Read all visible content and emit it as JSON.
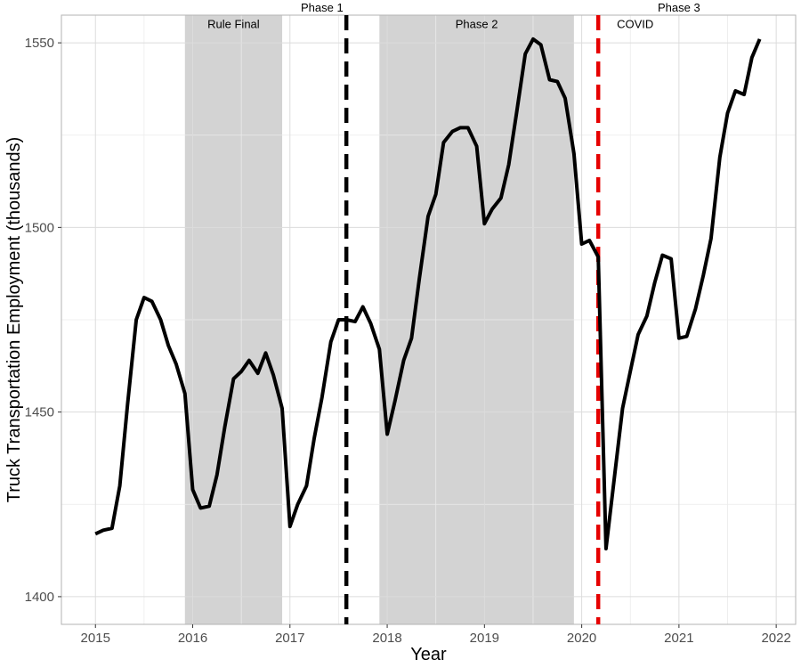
{
  "chart_data": {
    "type": "line",
    "title": "",
    "xlabel": "Year",
    "ylabel": "Truck Transportation Employment (thousands)",
    "xlim": [
      2014.65,
      2022.2
    ],
    "ylim": [
      1392.5,
      1557.5
    ],
    "x_ticks": [
      2015,
      2016,
      2017,
      2018,
      2019,
      2020,
      2021,
      2022
    ],
    "y_ticks": [
      1400,
      1450,
      1500,
      1550
    ],
    "grid": true,
    "legend": "none",
    "series": [
      {
        "color": "#000000",
        "points": [
          [
            2015.0,
            1417
          ],
          [
            2015.08,
            1418
          ],
          [
            2015.17,
            1418.5
          ],
          [
            2015.25,
            1430
          ],
          [
            2015.33,
            1452
          ],
          [
            2015.42,
            1475
          ],
          [
            2015.5,
            1481
          ],
          [
            2015.58,
            1480
          ],
          [
            2015.67,
            1475
          ],
          [
            2015.75,
            1468
          ],
          [
            2015.83,
            1463
          ],
          [
            2015.92,
            1455
          ],
          [
            2016.0,
            1429
          ],
          [
            2016.08,
            1424
          ],
          [
            2016.17,
            1424.5
          ],
          [
            2016.25,
            1433
          ],
          [
            2016.33,
            1446
          ],
          [
            2016.42,
            1459
          ],
          [
            2016.5,
            1461
          ],
          [
            2016.58,
            1464
          ],
          [
            2016.67,
            1460.5
          ],
          [
            2016.75,
            1466
          ],
          [
            2016.83,
            1460
          ],
          [
            2016.92,
            1451
          ],
          [
            2017.0,
            1419
          ],
          [
            2017.08,
            1425
          ],
          [
            2017.17,
            1430
          ],
          [
            2017.25,
            1443
          ],
          [
            2017.33,
            1454
          ],
          [
            2017.42,
            1469
          ],
          [
            2017.5,
            1475
          ],
          [
            2017.58,
            1475
          ],
          [
            2017.67,
            1474.5
          ],
          [
            2017.75,
            1478.5
          ],
          [
            2017.83,
            1474
          ],
          [
            2017.92,
            1467
          ],
          [
            2018.0,
            1444
          ],
          [
            2018.08,
            1453
          ],
          [
            2018.17,
            1464
          ],
          [
            2018.25,
            1470
          ],
          [
            2018.33,
            1486
          ],
          [
            2018.42,
            1503
          ],
          [
            2018.5,
            1509
          ],
          [
            2018.58,
            1523
          ],
          [
            2018.67,
            1526
          ],
          [
            2018.75,
            1527
          ],
          [
            2018.83,
            1527
          ],
          [
            2018.92,
            1522
          ],
          [
            2019.0,
            1501
          ],
          [
            2019.08,
            1505
          ],
          [
            2019.17,
            1508
          ],
          [
            2019.25,
            1517
          ],
          [
            2019.33,
            1531
          ],
          [
            2019.42,
            1547
          ],
          [
            2019.5,
            1551
          ],
          [
            2019.58,
            1549.5
          ],
          [
            2019.67,
            1540
          ],
          [
            2019.75,
            1539.5
          ],
          [
            2019.83,
            1535
          ],
          [
            2019.92,
            1520
          ],
          [
            2020.0,
            1495.5
          ],
          [
            2020.08,
            1496.5
          ],
          [
            2020.17,
            1492
          ],
          [
            2020.25,
            1413
          ],
          [
            2020.33,
            1431
          ],
          [
            2020.42,
            1451
          ],
          [
            2020.5,
            1461
          ],
          [
            2020.58,
            1471
          ],
          [
            2020.67,
            1476
          ],
          [
            2020.75,
            1485
          ],
          [
            2020.83,
            1492.5
          ],
          [
            2020.92,
            1491.5
          ],
          [
            2021.0,
            1470
          ],
          [
            2021.08,
            1470.5
          ],
          [
            2021.17,
            1478
          ],
          [
            2021.25,
            1487
          ],
          [
            2021.33,
            1497
          ],
          [
            2021.42,
            1519
          ],
          [
            2021.5,
            1531
          ],
          [
            2021.58,
            1537
          ],
          [
            2021.67,
            1536
          ],
          [
            2021.75,
            1546
          ],
          [
            2021.83,
            1551
          ]
        ]
      }
    ],
    "shaded_regions": [
      {
        "start": 2015.92,
        "end": 2016.92,
        "color": "#d3d3d3"
      },
      {
        "start": 2017.92,
        "end": 2019.92,
        "color": "#d3d3d3"
      }
    ],
    "vertical_lines": [
      {
        "x": 2017.58,
        "color": "#000000",
        "style": "dashed"
      },
      {
        "x": 2020.17,
        "color": "#e60000",
        "style": "dashed"
      }
    ],
    "annotations": [
      {
        "text": "Rule Final",
        "x": 2016.42,
        "y": 1554,
        "inside": true
      },
      {
        "text": "Phase 1",
        "x": 2017.33,
        "y": 0,
        "inside": false
      },
      {
        "text": "Phase 2",
        "x": 2018.92,
        "y": 1554,
        "inside": true
      },
      {
        "text": "COVID",
        "x": 2020.55,
        "y": 1554,
        "inside": true
      },
      {
        "text": "Phase 3",
        "x": 2021.0,
        "y": 0,
        "inside": false
      }
    ]
  }
}
